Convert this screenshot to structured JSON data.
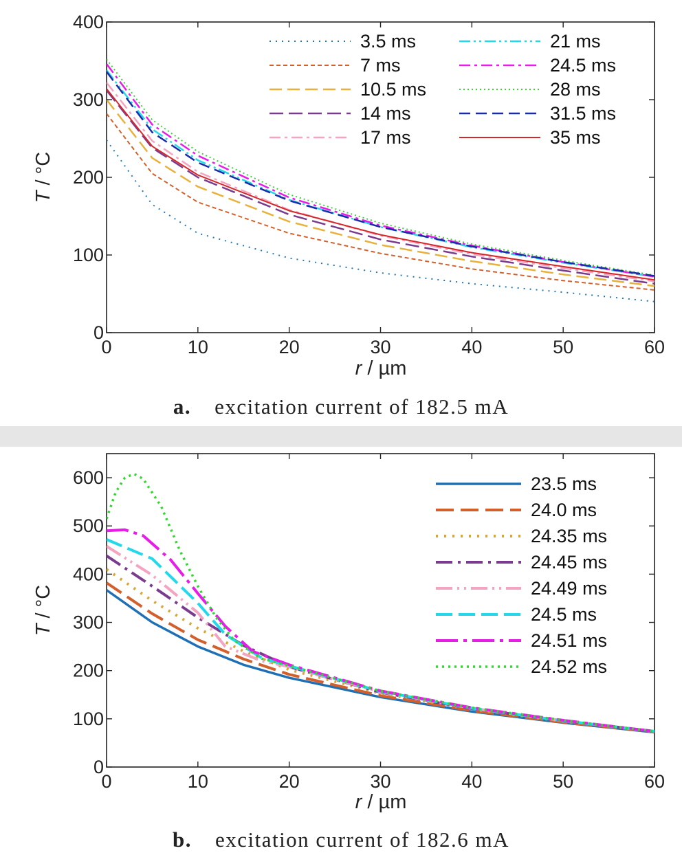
{
  "chart_data": [
    {
      "type": "line",
      "panel_label": "a.",
      "caption": "excitation current of 182.5 mA",
      "xlabel_var": "r",
      "xlabel_unit": " / µm",
      "ylabel_var": "T",
      "ylabel_unit": " / °C",
      "xlim": [
        0,
        60
      ],
      "ylim": [
        0,
        400
      ],
      "xticks": [
        0,
        10,
        20,
        30,
        40,
        50,
        60
      ],
      "yticks": [
        0,
        100,
        200,
        300,
        400
      ],
      "grid": false,
      "legend_position": "top-right, two columns",
      "x": [
        0,
        5,
        10,
        20,
        30,
        40,
        50,
        60
      ],
      "series": [
        {
          "name": "3.5 ms",
          "color": "#1f78b4",
          "dash": "2,7",
          "width": 2,
          "values": [
            248,
            165,
            128,
            96,
            77,
            63,
            52,
            40
          ]
        },
        {
          "name": "7 ms",
          "color": "#d35f2a",
          "dash": "6,4",
          "width": 2,
          "values": [
            282,
            205,
            168,
            128,
            102,
            82,
            67,
            55
          ]
        },
        {
          "name": "10.5 ms",
          "color": "#e8b13b",
          "dash": "18,8",
          "width": 2.5,
          "values": [
            300,
            225,
            188,
            143,
            113,
            92,
            75,
            60
          ]
        },
        {
          "name": "14 ms",
          "color": "#7a3b8f",
          "dash": "20,8",
          "width": 2.5,
          "values": [
            312,
            238,
            200,
            152,
            120,
            98,
            80,
            63
          ]
        },
        {
          "name": "17 ms",
          "color": "#f4a3c0",
          "dash": "16,6,4,6",
          "width": 2.5,
          "values": [
            322,
            247,
            207,
            158,
            125,
            101,
            83,
            66
          ]
        },
        {
          "name": "21 ms",
          "color": "#22d8ea",
          "dash": "16,5,3,5,3,5",
          "width": 2.5,
          "values": [
            338,
            262,
            222,
            171,
            136,
            110,
            90,
            72
          ]
        },
        {
          "name": "24.5 ms",
          "color": "#e81ce8",
          "dash": "16,6,4,6",
          "width": 2.5,
          "values": [
            346,
            268,
            228,
            174,
            138,
            112,
            91,
            72
          ]
        },
        {
          "name": "28 ms",
          "color": "#3ad33a",
          "dash": "2,4",
          "width": 2,
          "values": [
            352,
            274,
            233,
            178,
            141,
            114,
            93,
            74
          ]
        },
        {
          "name": "31.5 ms",
          "color": "#1a2aa8",
          "dash": "16,8",
          "width": 2.5,
          "values": [
            336,
            258,
            219,
            170,
            136,
            111,
            91,
            73
          ]
        },
        {
          "name": "35 ms",
          "color": "#d62728",
          "dash": "",
          "width": 2,
          "values": [
            314,
            240,
            203,
            157,
            126,
            103,
            85,
            68
          ]
        }
      ]
    },
    {
      "type": "line",
      "panel_label": "b.",
      "caption": "excitation current of 182.6 mA",
      "xlabel_var": "r",
      "xlabel_unit": " / µm",
      "ylabel_var": "T",
      "ylabel_unit": " / °C",
      "xlim": [
        0,
        60
      ],
      "ylim": [
        0,
        650
      ],
      "xticks": [
        0,
        10,
        20,
        30,
        40,
        50,
        60
      ],
      "yticks": [
        0,
        100,
        200,
        300,
        400,
        500,
        600
      ],
      "grid": false,
      "legend_position": "top-right",
      "series": [
        {
          "name": "23.5 ms",
          "color": "#1f6fb4",
          "dash": "",
          "width": 3.5,
          "x": [
            0,
            5,
            10,
            15,
            20,
            30,
            40,
            50,
            60
          ],
          "values": [
            367,
            300,
            250,
            212,
            185,
            145,
            115,
            92,
            72
          ]
        },
        {
          "name": "24.0 ms",
          "color": "#d35f2a",
          "dash": "26,10",
          "width": 4,
          "x": [
            0,
            5,
            10,
            15,
            20,
            30,
            40,
            50,
            60
          ],
          "values": [
            382,
            318,
            264,
            224,
            192,
            148,
            117,
            93,
            73
          ]
        },
        {
          "name": "24.35 ms",
          "color": "#d9a633",
          "dash": "3,9",
          "width": 4,
          "x": [
            0,
            5,
            10,
            15,
            20,
            30,
            40,
            50,
            60
          ],
          "values": [
            410,
            345,
            288,
            240,
            202,
            153,
            120,
            95,
            74
          ]
        },
        {
          "name": "24.45 ms",
          "color": "#7a3b8f",
          "dash": "24,8,4,8",
          "width": 4,
          "x": [
            0,
            5,
            10,
            15,
            20,
            30,
            40,
            50,
            60
          ],
          "values": [
            438,
            375,
            310,
            252,
            208,
            155,
            121,
            96,
            74
          ]
        },
        {
          "name": "24.49 ms",
          "color": "#f4a3c0",
          "dash": "24,7,3,7,3,7",
          "width": 4,
          "x": [
            0,
            5,
            10,
            13,
            17,
            20,
            30,
            40,
            50,
            60
          ],
          "values": [
            458,
            398,
            320,
            250,
            220,
            208,
            156,
            122,
            96,
            74
          ]
        },
        {
          "name": "24.5 ms",
          "color": "#22d8ea",
          "dash": "24,9",
          "width": 4,
          "x": [
            0,
            5,
            10,
            13,
            17,
            20,
            30,
            40,
            50,
            60
          ],
          "values": [
            472,
            432,
            340,
            275,
            226,
            210,
            157,
            122,
            96,
            74
          ]
        },
        {
          "name": "24.51 ms",
          "color": "#e81ce8",
          "dash": "32,8,5,8",
          "width": 4,
          "x": [
            0,
            2,
            4,
            7,
            10,
            13,
            16,
            20,
            30,
            40,
            50,
            60
          ],
          "values": [
            490,
            492,
            480,
            430,
            360,
            292,
            240,
            212,
            158,
            123,
            97,
            74
          ]
        },
        {
          "name": "24.52 ms",
          "color": "#2fd92f",
          "dash": "3,6",
          "width": 3.5,
          "x": [
            0,
            1,
            2,
            3,
            4,
            6,
            8,
            10,
            12,
            14,
            17,
            20,
            30,
            40,
            50,
            60
          ],
          "values": [
            515,
            570,
            600,
            608,
            598,
            540,
            450,
            375,
            310,
            262,
            225,
            210,
            158,
            123,
            97,
            74
          ]
        }
      ]
    }
  ]
}
